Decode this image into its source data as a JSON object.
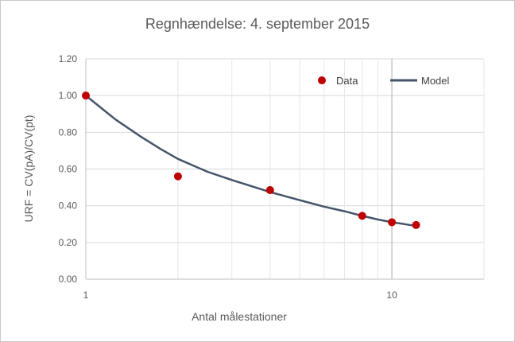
{
  "chart_data": {
    "type": "scatter",
    "title": "Regnhændelse: 4. september 2015",
    "xlabel": "Antal målestationer",
    "ylabel": "URF = CV(pA)/CV(pt)",
    "xscale": "log",
    "xlim": [
      1,
      20
    ],
    "ylim": [
      0,
      1.2
    ],
    "x_tick_labels": [
      "1",
      "10"
    ],
    "y_tick_labels": [
      "0.00",
      "0.20",
      "0.40",
      "0.60",
      "0.80",
      "1.00",
      "1.20"
    ],
    "grid": true,
    "legend_position": "top-right",
    "series": [
      {
        "name": "Data",
        "kind": "points",
        "color": "#c00000",
        "x": [
          1,
          2,
          4,
          8,
          10,
          12
        ],
        "y": [
          1.0,
          0.56,
          0.485,
          0.345,
          0.31,
          0.295
        ]
      },
      {
        "name": "Model",
        "kind": "line",
        "color": "#44546a",
        "x": [
          1,
          1.25,
          1.5,
          1.75,
          2,
          2.5,
          3,
          3.5,
          4,
          5,
          6,
          7,
          8,
          9,
          10,
          11,
          12
        ],
        "y": [
          1.0,
          0.87,
          0.78,
          0.71,
          0.655,
          0.585,
          0.54,
          0.505,
          0.475,
          0.43,
          0.395,
          0.37,
          0.345,
          0.325,
          0.31,
          0.3,
          0.29
        ]
      }
    ]
  }
}
